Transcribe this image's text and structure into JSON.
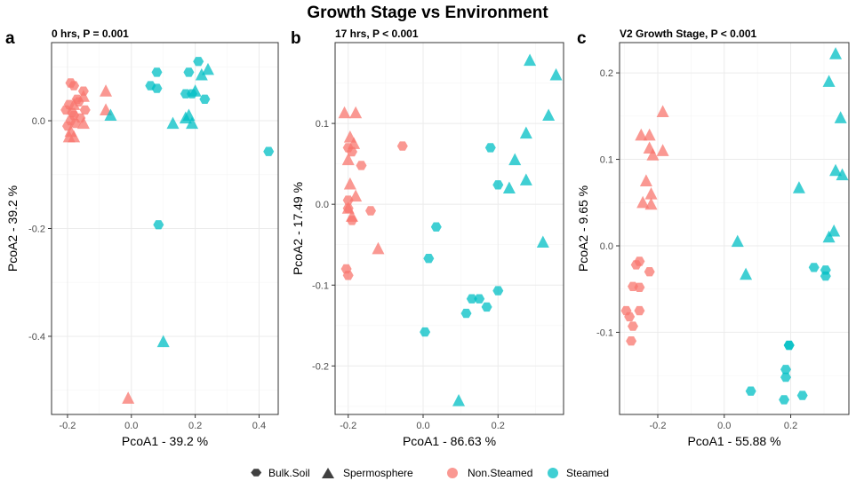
{
  "figure": {
    "title": "Growth Stage vs Environment",
    "legend": {
      "shape_items": [
        {
          "label": "Bulk.Soil",
          "shape": "circle"
        },
        {
          "label": "Spermosphere",
          "shape": "triangle"
        }
      ],
      "color_items": [
        {
          "label": "Non.Steamed",
          "color": "#F8766D"
        },
        {
          "label": "Steamed",
          "color": "#00BFC4"
        }
      ],
      "position": "bottom"
    }
  },
  "chart_data": [
    {
      "type": "scatter",
      "panel_letter": "a",
      "subtitle": "0 hrs, P = 0.001",
      "xlabel": "PcoA1 - 39.2 %",
      "ylabel": "PcoA2 - 39.2 %",
      "xlim": [
        -0.25,
        0.46
      ],
      "ylim": [
        -0.545,
        0.145
      ],
      "xticks": [
        -0.2,
        0.0,
        0.2,
        0.4
      ],
      "xtick_labels": [
        "-0.2",
        "0.0",
        "0.2",
        "0.4"
      ],
      "yticks": [
        0.0,
        -0.2,
        -0.4
      ],
      "ytick_labels": [
        "0.0",
        "-0.2",
        "-0.4"
      ],
      "grid": true,
      "series": [
        {
          "name": "Non.Steamed",
          "shape": "Bulk.Soil",
          "points": [
            [
              -0.19,
              0.07
            ],
            [
              -0.18,
              0.065
            ],
            [
              -0.15,
              0.055
            ],
            [
              -0.17,
              0.04
            ],
            [
              -0.195,
              0.03
            ],
            [
              -0.185,
              0.015
            ],
            [
              -0.205,
              0.02
            ],
            [
              -0.19,
              0.0
            ],
            [
              -0.175,
              -0.005
            ],
            [
              -0.145,
              0.02
            ],
            [
              -0.16,
              0.005
            ],
            [
              -0.18,
              0.01
            ],
            [
              -0.2,
              -0.01
            ],
            [
              -0.165,
              0.035
            ]
          ]
        },
        {
          "name": "Non.Steamed",
          "shape": "Spermosphere",
          "points": [
            [
              -0.08,
              0.055
            ],
            [
              -0.15,
              0.045
            ],
            [
              -0.19,
              -0.02
            ],
            [
              -0.18,
              -0.03
            ],
            [
              -0.195,
              -0.03
            ],
            [
              -0.15,
              -0.005
            ],
            [
              -0.08,
              0.02
            ],
            [
              -0.18,
              0.03
            ],
            [
              -0.01,
              -0.515
            ]
          ]
        },
        {
          "name": "Steamed",
          "shape": "Bulk.Soil",
          "points": [
            [
              0.08,
              0.09
            ],
            [
              0.06,
              0.065
            ],
            [
              0.08,
              0.06
            ],
            [
              0.18,
              0.09
            ],
            [
              0.21,
              0.11
            ],
            [
              0.17,
              0.05
            ],
            [
              0.19,
              0.05
            ],
            [
              0.23,
              0.04
            ],
            [
              0.43,
              -0.057
            ],
            [
              0.085,
              -0.193
            ]
          ]
        },
        {
          "name": "Steamed",
          "shape": "Spermosphere",
          "points": [
            [
              0.24,
              0.095
            ],
            [
              0.22,
              0.085
            ],
            [
              0.2,
              0.055
            ],
            [
              0.18,
              0.01
            ],
            [
              0.17,
              0.005
            ],
            [
              0.19,
              -0.005
            ],
            [
              0.13,
              -0.005
            ],
            [
              -0.065,
              0.01
            ],
            [
              0.1,
              -0.41
            ]
          ]
        }
      ]
    },
    {
      "type": "scatter",
      "panel_letter": "b",
      "subtitle": "17 hrs, P < 0.001",
      "xlabel": "PcoA1 - 86.63 %",
      "ylabel": "PcoA2 - 17.49 %",
      "xlim": [
        -0.235,
        0.375
      ],
      "ylim": [
        -0.26,
        0.2
      ],
      "xticks": [
        -0.2,
        0.0,
        0.2
      ],
      "xtick_labels": [
        "-0.2",
        "0.0",
        "0.2"
      ],
      "yticks": [
        0.1,
        0.0,
        -0.1,
        -0.2
      ],
      "ytick_labels": [
        "0.1",
        "0.0",
        "-0.1",
        "-0.2"
      ],
      "grid": true,
      "series": [
        {
          "name": "Non.Steamed",
          "shape": "Bulk.Soil",
          "points": [
            [
              -0.2,
              0.07
            ],
            [
              -0.19,
              0.065
            ],
            [
              -0.165,
              0.048
            ],
            [
              -0.2,
              0.005
            ],
            [
              -0.2,
              -0.005
            ],
            [
              -0.19,
              -0.02
            ],
            [
              -0.14,
              -0.008
            ],
            [
              -0.055,
              0.072
            ],
            [
              -0.205,
              -0.08
            ],
            [
              -0.2,
              -0.088
            ]
          ]
        },
        {
          "name": "Non.Steamed",
          "shape": "Spermosphere",
          "points": [
            [
              -0.21,
              0.113
            ],
            [
              -0.18,
              0.113
            ],
            [
              -0.195,
              0.083
            ],
            [
              -0.185,
              0.075
            ],
            [
              -0.2,
              0.055
            ],
            [
              -0.195,
              0.025
            ],
            [
              -0.18,
              0.01
            ],
            [
              -0.2,
              -0.005
            ],
            [
              -0.19,
              -0.015
            ],
            [
              -0.12,
              -0.055
            ]
          ]
        },
        {
          "name": "Steamed",
          "shape": "Bulk.Soil",
          "points": [
            [
              0.18,
              0.07
            ],
            [
              0.2,
              0.024
            ],
            [
              0.035,
              -0.028
            ],
            [
              0.015,
              -0.067
            ],
            [
              0.2,
              -0.107
            ],
            [
              0.13,
              -0.117
            ],
            [
              0.15,
              -0.117
            ],
            [
              0.17,
              -0.127
            ],
            [
              0.115,
              -0.135
            ],
            [
              0.005,
              -0.158
            ]
          ]
        },
        {
          "name": "Steamed",
          "shape": "Spermosphere",
          "points": [
            [
              0.285,
              0.178
            ],
            [
              0.355,
              0.16
            ],
            [
              0.335,
              0.11
            ],
            [
              0.275,
              0.088
            ],
            [
              0.245,
              0.055
            ],
            [
              0.275,
              0.03
            ],
            [
              0.23,
              0.02
            ],
            [
              0.32,
              -0.047
            ],
            [
              0.095,
              -0.243
            ]
          ]
        }
      ]
    },
    {
      "type": "scatter",
      "panel_letter": "c",
      "subtitle": "V2 Growth Stage, P < 0.001",
      "xlabel": "PcoA1 - 55.88 %",
      "ylabel": "PcoA2 - 9.65 %",
      "xlim": [
        -0.315,
        0.375
      ],
      "ylim": [
        -0.195,
        0.235
      ],
      "xticks": [
        -0.2,
        0.0,
        0.2
      ],
      "xtick_labels": [
        "-0.2",
        "0.0",
        "0.2"
      ],
      "yticks": [
        0.2,
        0.1,
        0.0,
        -0.1
      ],
      "ytick_labels": [
        "0.2",
        "0.1",
        "0.0",
        "-0.1"
      ],
      "grid": true,
      "series": [
        {
          "name": "Non.Steamed",
          "shape": "Bulk.Soil",
          "points": [
            [
              -0.255,
              -0.018
            ],
            [
              -0.265,
              -0.022
            ],
            [
              -0.225,
              -0.03
            ],
            [
              -0.275,
              -0.047
            ],
            [
              -0.255,
              -0.048
            ],
            [
              -0.255,
              -0.075
            ],
            [
              -0.295,
              -0.075
            ],
            [
              -0.285,
              -0.082
            ],
            [
              -0.275,
              -0.093
            ],
            [
              -0.28,
              -0.11
            ]
          ]
        },
        {
          "name": "Non.Steamed",
          "shape": "Spermosphere",
          "points": [
            [
              -0.185,
              0.155
            ],
            [
              -0.25,
              0.128
            ],
            [
              -0.225,
              0.128
            ],
            [
              -0.225,
              0.113
            ],
            [
              -0.215,
              0.105
            ],
            [
              -0.185,
              0.11
            ],
            [
              -0.235,
              0.075
            ],
            [
              -0.22,
              0.06
            ],
            [
              -0.245,
              0.05
            ],
            [
              -0.22,
              0.048
            ]
          ]
        },
        {
          "name": "Steamed",
          "shape": "Bulk.Soil",
          "points": [
            [
              0.195,
              -0.115
            ],
            [
              0.195,
              -0.115
            ],
            [
              0.27,
              -0.025
            ],
            [
              0.305,
              -0.028
            ],
            [
              0.305,
              -0.035
            ],
            [
              0.185,
              -0.143
            ],
            [
              0.185,
              -0.152
            ],
            [
              0.08,
              -0.168
            ],
            [
              0.235,
              -0.173
            ],
            [
              0.18,
              -0.178
            ]
          ]
        },
        {
          "name": "Steamed",
          "shape": "Spermosphere",
          "points": [
            [
              0.335,
              0.222
            ],
            [
              0.315,
              0.19
            ],
            [
              0.35,
              0.148
            ],
            [
              0.335,
              0.087
            ],
            [
              0.355,
              0.082
            ],
            [
              0.225,
              0.067
            ],
            [
              0.33,
              0.017
            ],
            [
              0.315,
              0.01
            ],
            [
              0.04,
              0.005
            ],
            [
              0.065,
              -0.033
            ]
          ]
        }
      ]
    }
  ]
}
